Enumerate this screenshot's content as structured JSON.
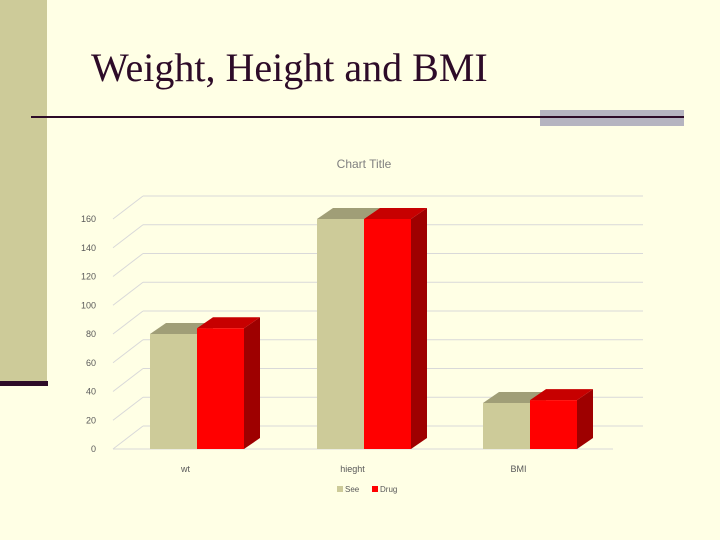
{
  "slide": {
    "title": "Weight, Height and BMI"
  },
  "chart_data": {
    "type": "bar",
    "title": "Chart Title",
    "categories": [
      "wt",
      "hieght",
      "BMI"
    ],
    "series": [
      {
        "name": "See",
        "values": [
          80,
          160,
          32
        ],
        "color": "#CDCB99"
      },
      {
        "name": "Drug",
        "values": [
          84,
          160,
          34
        ],
        "color": "#FF0000"
      }
    ],
    "ylim": [
      0,
      160
    ],
    "yticks": [
      0,
      20,
      40,
      60,
      80,
      100,
      120,
      140,
      160
    ],
    "grid": true,
    "legend": "bottom",
    "style": "3d-clustered-column"
  }
}
